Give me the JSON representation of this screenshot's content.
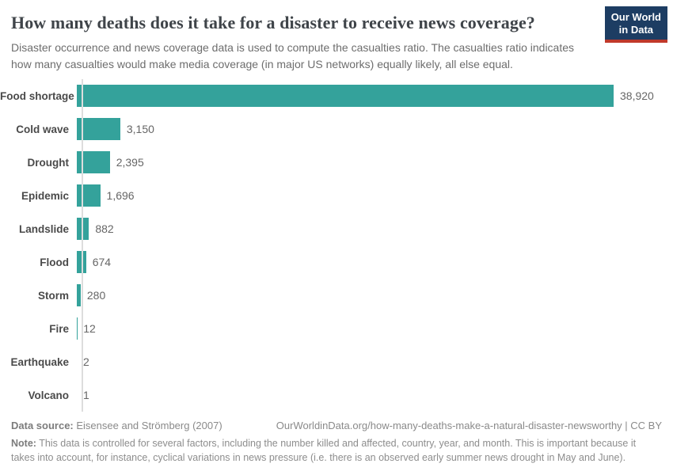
{
  "header": {
    "title": "How many deaths does it take for a disaster to receive news coverage?",
    "subtitle": "Disaster occurrence and news coverage data is used to compute the casualties ratio. The casualties ratio indicates how many casualties would make media coverage (in major US networks) equally likely, all else equal.",
    "logo_line1": "Our World",
    "logo_line2": "in Data"
  },
  "chart_data": {
    "type": "bar",
    "orientation": "horizontal",
    "title": "How many deaths does it take for a disaster to receive news coverage?",
    "xlabel": "",
    "ylabel": "",
    "categories": [
      "Food shortage",
      "Cold wave",
      "Drought",
      "Epidemic",
      "Landslide",
      "Flood",
      "Storm",
      "Fire",
      "Earthquake",
      "Volcano"
    ],
    "values": [
      38920,
      3150,
      2395,
      1696,
      882,
      674,
      280,
      12,
      2,
      1
    ],
    "value_labels": [
      "38,920",
      "3,150",
      "2,395",
      "1,696",
      "882",
      "674",
      "280",
      "12",
      "2",
      "1"
    ],
    "xlim": [
      0,
      38920
    ],
    "grid": false,
    "legend": false
  },
  "footer": {
    "source_label": "Data source:",
    "source_text": "Eisensee and Strömberg (2007)",
    "url_text": "OurWorldinData.org/how-many-deaths-make-a-natural-disaster-newsworthy | CC BY",
    "note_label": "Note:",
    "note_text": "This data is controlled for several factors, including the number killed and affected, country, year, and month. This is important because it takes into account, for instance, cyclical variations in news pressure (i.e. there is an observed early summer news drought in May and June)."
  },
  "colors": {
    "bar": "#34a29b",
    "axis": "#dddddd",
    "logo_navy": "#1d3d63",
    "logo_red": "#c0392b"
  }
}
